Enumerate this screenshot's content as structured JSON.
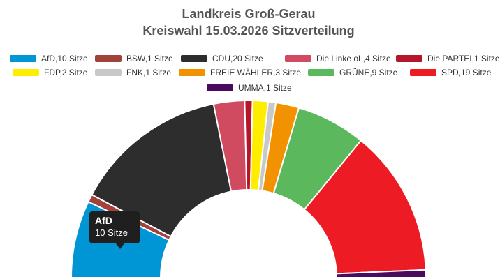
{
  "title": "Landkreis Groß-Gerau",
  "subtitle": "Kreiswahl 15.03.2026 Sitzverteilung",
  "chart_data": {
    "type": "pie",
    "variant": "semicircle-parliament",
    "title": "Landkreis Groß-Gerau",
    "subtitle": "Kreiswahl 15.03.2026 Sitzverteilung",
    "unit": "Sitze",
    "legend_placement": "top",
    "series": [
      {
        "name": "AfD",
        "value": 10,
        "color": "#0095d5",
        "legend": "AfD,10 Sitze"
      },
      {
        "name": "BSW",
        "value": 1,
        "color": "#a3413b",
        "legend": "BSW,1 Sitze"
      },
      {
        "name": "CDU",
        "value": 20,
        "color": "#2d2d2d",
        "legend": "CDU,20 Sitze"
      },
      {
        "name": "Die Linke oL",
        "value": 4,
        "color": "#d14b60",
        "legend": "Die Linke oL,4 Sitze"
      },
      {
        "name": "Die PARTEI",
        "value": 1,
        "color": "#b5162b",
        "legend": "Die PARTEI,1 Sitze"
      },
      {
        "name": "FDP",
        "value": 2,
        "color": "#ffed00",
        "legend": "FDP,2 Sitze"
      },
      {
        "name": "FNK",
        "value": 1,
        "color": "#c8c8c8",
        "legend": "FNK,1 Sitze"
      },
      {
        "name": "FREIE WÄHLER",
        "value": 3,
        "color": "#f39200",
        "legend": "FREIE WÄHLER,3 Sitze"
      },
      {
        "name": "GRÜNE",
        "value": 9,
        "color": "#5cb85c",
        "legend": "GRÜNE,9 Sitze"
      },
      {
        "name": "SPD",
        "value": 19,
        "color": "#ed1c24",
        "legend": "SPD,19 Sitze"
      },
      {
        "name": "UMMA",
        "value": 1,
        "color": "#4b0a5e",
        "legend": "UMMA,1 Sitze"
      }
    ],
    "tooltip": {
      "name": "AfD",
      "value_text": "10 Sitze"
    }
  }
}
